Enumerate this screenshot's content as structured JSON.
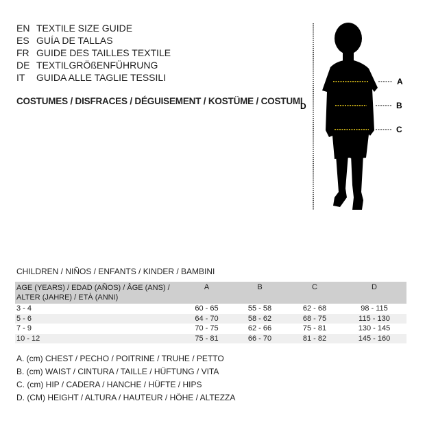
{
  "languages": [
    {
      "code": "EN",
      "text": "TEXTILE SIZE GUIDE"
    },
    {
      "code": "ES",
      "text": "GUÍA DE TALLAS"
    },
    {
      "code": "FR",
      "text": "GUIDE DES TAILLES TEXTILE"
    },
    {
      "code": "DE",
      "text": "TEXTILGRÖßENFÜHRUNG"
    },
    {
      "code": "IT",
      "text": "GUIDA ALLE TAGLIE TESSILI"
    }
  ],
  "costumes": "COSTUMES / DISFRACES / DÉGUISEMENT / KOSTÜME / COSTUMI",
  "figure": {
    "labels": {
      "A": "A",
      "B": "B",
      "C": "C",
      "D": "D"
    },
    "measure_line_color": "#f2d21b"
  },
  "children": "CHILDREN / NIÑOS / ENFANTS / KINDER / BAMBINI",
  "table": {
    "headers": [
      "AGE (YEARS) / EDAD (AÑOS) / ÂGE (ANS) / ALTER (JAHRE) / ETÀ (ANNI)",
      "A",
      "B",
      "C",
      "D"
    ],
    "rows": [
      [
        "3 - 4",
        "60 - 65",
        "55 - 58",
        "62 - 68",
        "98 - 115"
      ],
      [
        "5 - 6",
        "64 - 70",
        "58 - 62",
        "68 - 75",
        "115 - 130"
      ],
      [
        "7 - 9",
        "70 - 75",
        "62 - 66",
        "75 - 81",
        "130 - 145"
      ],
      [
        "10 - 12",
        "75 - 81",
        "66 - 70",
        "81 - 82",
        "145 - 160"
      ]
    ]
  },
  "legend": [
    "A. (cm) CHEST / PECHO / POITRINE / TRUHE / PETTO",
    "B. (cm) WAIST / CINTURA / TAILLE / HÜFTUNG / VITA",
    "C. (cm) HIP / CADERA / HANCHE / HÜFTE / HIPS",
    "D. (CM) HEIGHT / ALTURA / HAUTEUR / HÖHE / ALTEZZA"
  ]
}
